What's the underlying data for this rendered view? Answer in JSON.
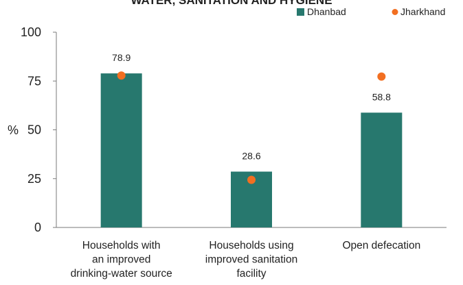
{
  "chart_data": {
    "type": "bar",
    "title": "WATER, SANITATION AND HYGIENE",
    "ylabel": "%",
    "ylim": [
      0,
      100
    ],
    "yticks": [
      0,
      25,
      50,
      75,
      100
    ],
    "categories": [
      [
        "Households with",
        "an improved",
        "drinking-water source"
      ],
      [
        "Households using",
        "improved sanitation",
        "facility"
      ],
      [
        "Open defecation"
      ]
    ],
    "series": [
      {
        "name": "Dhanbad",
        "kind": "bar",
        "color": "#27786e",
        "values": [
          78.9,
          28.6,
          58.8
        ],
        "labels": [
          "78.9",
          "28.6",
          "58.8"
        ]
      },
      {
        "name": "Jharkhand",
        "kind": "point",
        "color": "#f26f21",
        "values": [
          77.8,
          24.4,
          77.3
        ]
      }
    ],
    "grid": false,
    "legend": "top-right"
  }
}
